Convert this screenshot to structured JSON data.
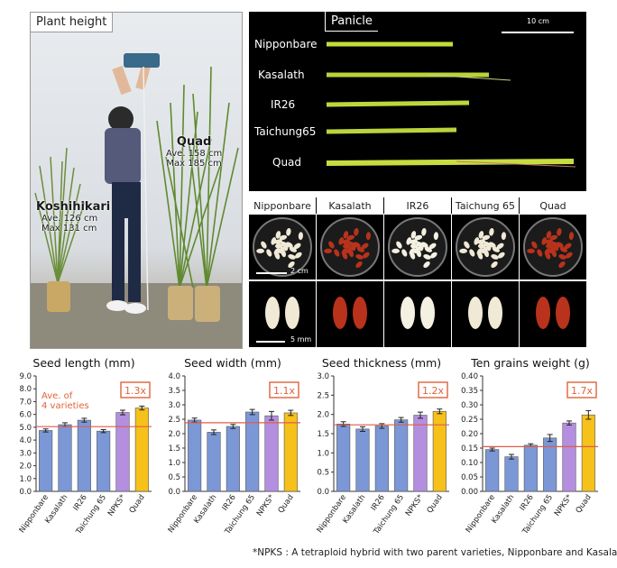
{
  "plant_panel": {
    "title": "Plant height",
    "koshihikari": {
      "name": "Koshihikari",
      "ave": "Ave. 126 cm",
      "max": "Max 131 cm"
    },
    "quad": {
      "name": "Quad",
      "ave": "Ave. 158 cm",
      "max": "Max 185 cm"
    }
  },
  "panicle_panel": {
    "title": "Panicle",
    "scale": "10 cm",
    "rows": [
      "Nipponbare",
      "Kasalath",
      "IR26",
      "Taichung65",
      "Quad"
    ]
  },
  "seed_panel": {
    "varieties": [
      "Nipponbare",
      "Kasalath",
      "IR26",
      "Taichung 65",
      "Quad"
    ],
    "scale_top": "2 cm",
    "scale_bottom": "5 mm",
    "colors": {
      "white": "#efe9d6",
      "red": "#b8321c",
      "light": "#f4f0e2"
    }
  },
  "colors": {
    "blue": "#7b97d6",
    "purple": "#b48fdf",
    "yellow": "#f6c11a",
    "ref_line": "#e05c4a",
    "callout": "#e0623a"
  },
  "chart_data": [
    {
      "type": "bar",
      "title": "Seed length (mm)",
      "categories": [
        "Nipponbare",
        "Kasalath",
        "IR26",
        "Taichung 65",
        "NPKS*",
        "Quad"
      ],
      "values": [
        4.75,
        5.2,
        5.55,
        4.7,
        6.15,
        6.5
      ],
      "errors": [
        0.12,
        0.15,
        0.15,
        0.12,
        0.18,
        0.15
      ],
      "ylim": [
        0,
        9
      ],
      "yticks": [
        "0.0",
        "1.0",
        "2.0",
        "3.0",
        "4.0",
        "5.0",
        "6.0",
        "7.0",
        "8.0",
        "9.0"
      ],
      "reference": 5.05,
      "callout": "1.3x",
      "annotation": [
        "Ave. of",
        "4 varieties"
      ]
    },
    {
      "type": "bar",
      "title": "Seed width (mm)",
      "categories": [
        "Nipponbare",
        "Kasalath",
        "IR26",
        "Taichung 65",
        "NPKS*",
        "Quad"
      ],
      "values": [
        2.47,
        2.05,
        2.25,
        2.75,
        2.62,
        2.72
      ],
      "errors": [
        0.07,
        0.08,
        0.07,
        0.09,
        0.15,
        0.09
      ],
      "ylim": [
        0,
        4
      ],
      "yticks": [
        "0.0",
        "0.5",
        "1.0",
        "1.5",
        "2.0",
        "2.5",
        "3.0",
        "3.5",
        "4.0"
      ],
      "reference": 2.38,
      "callout": "1.1x"
    },
    {
      "type": "bar",
      "title": "Seed thickness (mm)",
      "categories": [
        "Nipponbare",
        "Kasalath",
        "IR26",
        "Taichung 65",
        "NPKS*",
        "Quad"
      ],
      "values": [
        1.75,
        1.62,
        1.7,
        1.86,
        1.98,
        2.08
      ],
      "errors": [
        0.06,
        0.06,
        0.06,
        0.06,
        0.08,
        0.06
      ],
      "ylim": [
        0,
        3
      ],
      "yticks": [
        "0.0",
        "0.5",
        "1.0",
        "1.5",
        "2.0",
        "2.5",
        "3.0"
      ],
      "reference": 1.73,
      "callout": "1.2x"
    },
    {
      "type": "bar",
      "title": "Ten grains weight (g)",
      "categories": [
        "Nipponbare",
        "Kasalath",
        "IR26",
        "Taichung 65",
        "NPKS*",
        "Quad"
      ],
      "values": [
        0.145,
        0.12,
        0.16,
        0.185,
        0.237,
        0.265
      ],
      "errors": [
        0.005,
        0.008,
        0.005,
        0.012,
        0.007,
        0.015
      ],
      "ylim": [
        0,
        0.4
      ],
      "yticks": [
        "0.00",
        "0.05",
        "0.10",
        "0.15",
        "0.20",
        "0.25",
        "0.30",
        "0.35",
        "0.40"
      ],
      "reference": 0.155,
      "callout": "1.7x"
    }
  ],
  "footnote": "*NPKS : A tetraploid hybrid with two parent varieties, Nipponbare and Kasalath."
}
